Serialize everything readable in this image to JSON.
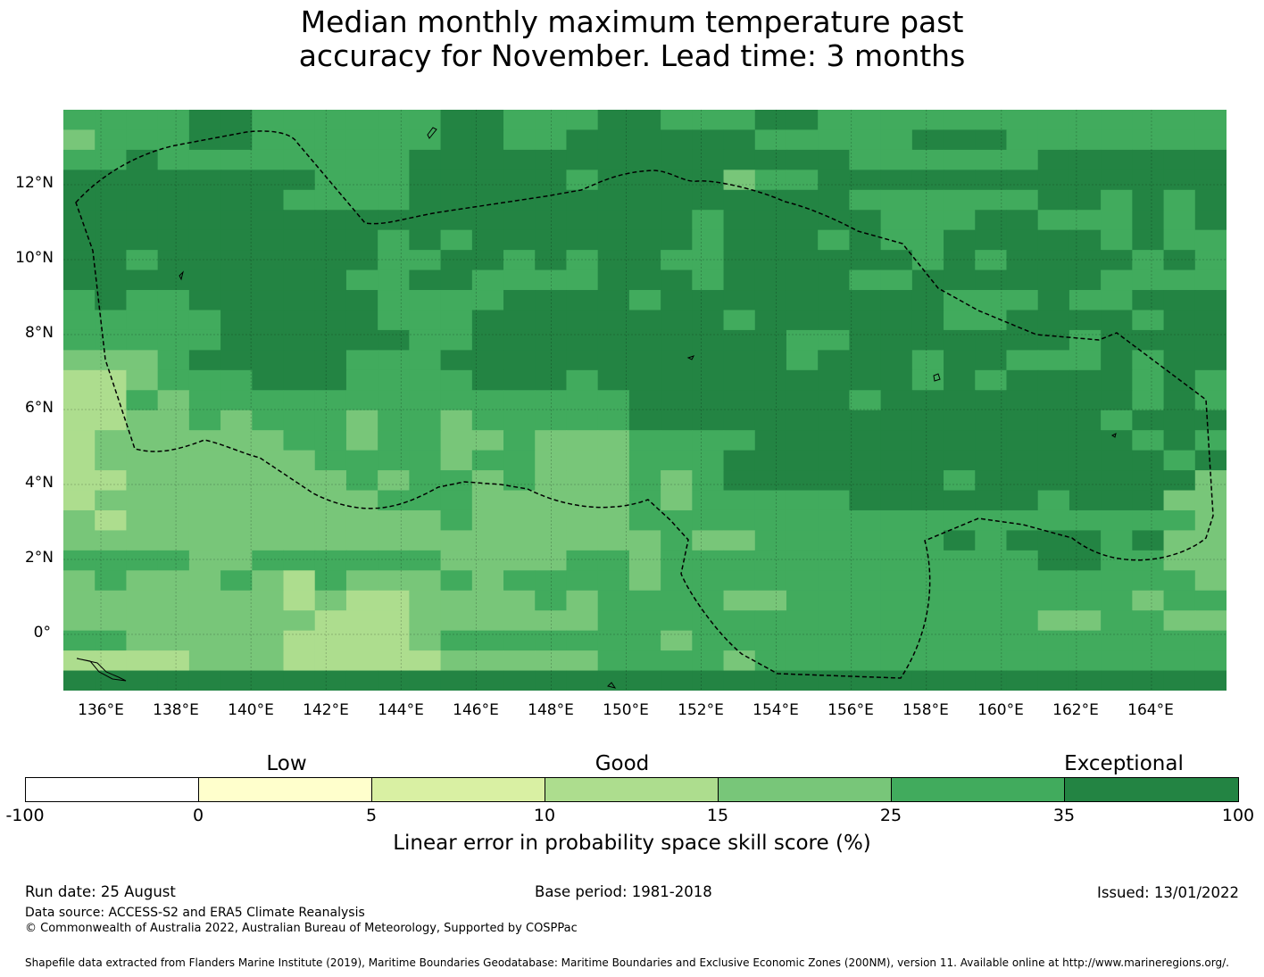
{
  "title_line1": "Median monthly maximum temperature past",
  "title_line2": "accuracy for November. Lead time: 3 months",
  "map": {
    "lon_range": [
      135.0,
      166.0
    ],
    "lat_range": [
      -1.5,
      14.0
    ],
    "lat_labels": [
      "12°N",
      "10°N",
      "8°N",
      "6°N",
      "4°N",
      "2°N",
      "0°"
    ],
    "lat_values": [
      12,
      10,
      8,
      6,
      4,
      2,
      0
    ],
    "lon_labels": [
      "136°E",
      "138°E",
      "140°E",
      "142°E",
      "144°E",
      "146°E",
      "148°E",
      "150°E",
      "152°E",
      "154°E",
      "156°E",
      "158°E",
      "160°E",
      "162°E",
      "164°E"
    ],
    "lon_values": [
      136,
      138,
      140,
      142,
      144,
      146,
      148,
      150,
      152,
      154,
      156,
      158,
      160,
      162,
      164
    ],
    "grid_lines": true,
    "boundary_style": "dashed",
    "palette": {
      "0": "#ffffcc",
      "1": "#d9f0a3",
      "2": "#addd8e",
      "3": "#78c679",
      "4": "#41ab5d",
      "5": "#238443"
    },
    "cell_grid_rows": [
      "4444554444445544455444554444444444444",
      "3444554444445544555555444445554444444",
      "4454444444455555555555555444444555555",
      "5555555544455555455553445555555555555",
      "5555555444455555555555555444444554545",
      "5555555555555555555545555544455444545",
      "5555555555454555555545554544555554544",
      "5545555555445545455445555554545555454",
      "5555555554455444455545555445555554444",
      "4544555555444455554555555555444544555",
      "4444455555444555555554555555445555455",
      "4444455555544555555555544555555545555",
      "3334555554445555555555545554554445455",
      "2234445554444555455555555554545555454",
      "2243444444444444445555555455555555454",
      "2233434443443444445555555555555554555",
      "2333333443443343334444555555555555454",
      "2333333344443443334445555555555555545",
      "2233333334344343334345555555455555553",
      "2333333333444333334344444555555455533",
      "3233333333334333334444444444444444443",
      "3333333333333333333433444444545554533",
      "4444334444443333443444444444444554433",
      "3433343243334344443444444444444444443",
      "3333333232233334344443344444444444344",
      "3333333322233333344444444444444334433",
      "4433333222234444444344444444444444444",
      "2222333222223333344443444444444444444",
      "5555555555555555555555555555555555555"
    ],
    "markers": "outline-dotted"
  },
  "legend": {
    "categories": [
      "Low",
      "Good",
      "Exceptional"
    ],
    "ticks": [
      "-100",
      "0",
      "5",
      "10",
      "15",
      "25",
      "35",
      "100"
    ],
    "colors": [
      "#ffffff",
      "#ffffcc",
      "#d9f0a3",
      "#addd8e",
      "#78c679",
      "#41ab5d",
      "#238443"
    ],
    "label": "Linear error in probability space skill score (%)"
  },
  "footer": {
    "run_date": "Run date: 25 August",
    "base_period": "Base period: 1981-2018",
    "issued": "Issued: 13/01/2022",
    "data_source": "Data source: ACCESS-S2 and ERA5 Climate Reanalysis",
    "copyright": "© Commonwealth of Australia 2022, Australian Bureau of Meteorology, Supported by COSPPac",
    "shapefile": "Shapefile data extracted from Flanders Marine Institute (2019), Maritime Boundaries Geodatabase: Maritime Boundaries and Exclusive Economic Zones (200NM), version 11. Available online at http://www.marineregions.org/."
  }
}
